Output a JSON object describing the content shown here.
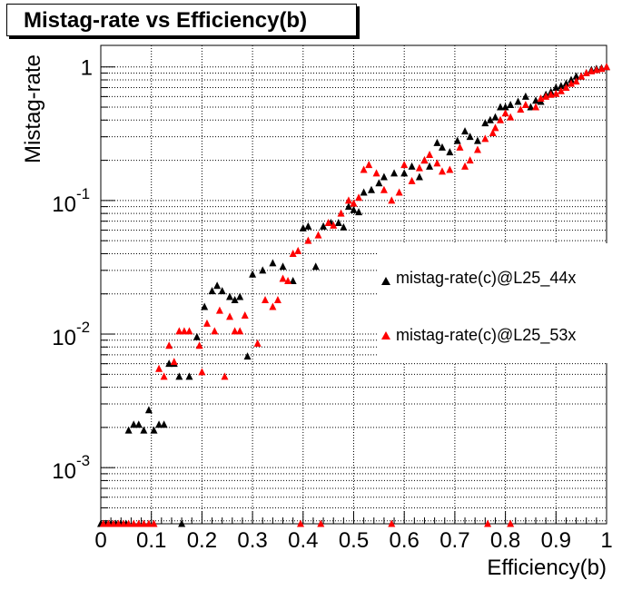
{
  "chart_data": {
    "type": "scatter",
    "title": "Mistag-rate vs Efficiency(b)",
    "xlabel": "Efficiency(b)",
    "ylabel": "Mistag-rate",
    "xlim": [
      0,
      1
    ],
    "ylim": [
      0.00038,
      1.45
    ],
    "yscale": "log",
    "grid": true,
    "legend_position": "right",
    "x_ticks": [
      "0",
      "0.1",
      "0.2",
      "0.3",
      "0.4",
      "0.5",
      "0.6",
      "0.7",
      "0.8",
      "0.9",
      "1"
    ],
    "y_ticks": [
      {
        "base": "10",
        "exp": "-3",
        "value": 0.001
      },
      {
        "base": "10",
        "exp": "-2",
        "value": 0.01
      },
      {
        "base": "10",
        "exp": "-1",
        "value": 0.1
      },
      {
        "base": "1",
        "exp": "",
        "value": 1
      }
    ],
    "series": [
      {
        "name": "mistag-rate(c)@L25_44x",
        "color": "#000000",
        "points": [
          [
            0.0,
            0.00038
          ],
          [
            0.01,
            0.00038
          ],
          [
            0.02,
            0.00038
          ],
          [
            0.03,
            0.00038
          ],
          [
            0.04,
            0.00038
          ],
          [
            0.05,
            0.00038
          ],
          [
            0.16,
            0.00038
          ],
          [
            0.055,
            0.0019
          ],
          [
            0.065,
            0.0021
          ],
          [
            0.075,
            0.0021
          ],
          [
            0.085,
            0.0019
          ],
          [
            0.095,
            0.0027
          ],
          [
            0.105,
            0.0019
          ],
          [
            0.115,
            0.0021
          ],
          [
            0.125,
            0.0021
          ],
          [
            0.135,
            0.006
          ],
          [
            0.145,
            0.006
          ],
          [
            0.155,
            0.0048
          ],
          [
            0.175,
            0.0048
          ],
          [
            0.19,
            0.0095
          ],
          [
            0.205,
            0.016
          ],
          [
            0.22,
            0.021
          ],
          [
            0.23,
            0.023
          ],
          [
            0.24,
            0.021
          ],
          [
            0.255,
            0.019
          ],
          [
            0.265,
            0.018
          ],
          [
            0.275,
            0.019
          ],
          [
            0.29,
            0.0068
          ],
          [
            0.3,
            0.028
          ],
          [
            0.32,
            0.03
          ],
          [
            0.34,
            0.034
          ],
          [
            0.36,
            0.032
          ],
          [
            0.38,
            0.025
          ],
          [
            0.4,
            0.062
          ],
          [
            0.41,
            0.064
          ],
          [
            0.425,
            0.032
          ],
          [
            0.44,
            0.064
          ],
          [
            0.455,
            0.068
          ],
          [
            0.47,
            0.068
          ],
          [
            0.48,
            0.063
          ],
          [
            0.49,
            0.09
          ],
          [
            0.5,
            0.085
          ],
          [
            0.51,
            0.082
          ],
          [
            0.52,
            0.115
          ],
          [
            0.535,
            0.12
          ],
          [
            0.55,
            0.135
          ],
          [
            0.56,
            0.15
          ],
          [
            0.58,
            0.16
          ],
          [
            0.6,
            0.16
          ],
          [
            0.615,
            0.18
          ],
          [
            0.63,
            0.15
          ],
          [
            0.64,
            0.2
          ],
          [
            0.65,
            0.18
          ],
          [
            0.665,
            0.27
          ],
          [
            0.675,
            0.25
          ],
          [
            0.69,
            0.23
          ],
          [
            0.705,
            0.28
          ],
          [
            0.72,
            0.33
          ],
          [
            0.73,
            0.3
          ],
          [
            0.745,
            0.28
          ],
          [
            0.76,
            0.38
          ],
          [
            0.77,
            0.4
          ],
          [
            0.78,
            0.42
          ],
          [
            0.79,
            0.5
          ],
          [
            0.8,
            0.5
          ],
          [
            0.81,
            0.52
          ],
          [
            0.825,
            0.55
          ],
          [
            0.84,
            0.6
          ],
          [
            0.85,
            0.5
          ],
          [
            0.86,
            0.56
          ],
          [
            0.87,
            0.55
          ],
          [
            0.88,
            0.62
          ],
          [
            0.89,
            0.65
          ],
          [
            0.9,
            0.7
          ],
          [
            0.91,
            0.72
          ],
          [
            0.92,
            0.75
          ],
          [
            0.93,
            0.8
          ],
          [
            0.94,
            0.85
          ],
          [
            0.95,
            0.85
          ],
          [
            0.96,
            0.9
          ],
          [
            0.97,
            0.95
          ],
          [
            0.98,
            0.97
          ],
          [
            0.99,
            0.98
          ],
          [
            1.0,
            1.0
          ]
        ]
      },
      {
        "name": "mistag-rate(c)@L25_53x",
        "color": "#ff0000",
        "points": [
          [
            0.005,
            0.00038
          ],
          [
            0.015,
            0.00038
          ],
          [
            0.025,
            0.00038
          ],
          [
            0.035,
            0.00038
          ],
          [
            0.045,
            0.00038
          ],
          [
            0.055,
            0.00038
          ],
          [
            0.065,
            0.00038
          ],
          [
            0.075,
            0.00038
          ],
          [
            0.085,
            0.00038
          ],
          [
            0.095,
            0.00038
          ],
          [
            0.105,
            0.00038
          ],
          [
            0.395,
            0.00038
          ],
          [
            0.435,
            0.00038
          ],
          [
            0.575,
            0.00038
          ],
          [
            0.765,
            0.00038
          ],
          [
            0.81,
            0.00038
          ],
          [
            0.115,
            0.0055
          ],
          [
            0.125,
            0.0048
          ],
          [
            0.135,
            0.0082
          ],
          [
            0.145,
            0.0062
          ],
          [
            0.155,
            0.0105
          ],
          [
            0.165,
            0.0105
          ],
          [
            0.175,
            0.0105
          ],
          [
            0.195,
            0.0082
          ],
          [
            0.2,
            0.0052
          ],
          [
            0.21,
            0.012
          ],
          [
            0.225,
            0.0105
          ],
          [
            0.235,
            0.015
          ],
          [
            0.245,
            0.0048
          ],
          [
            0.255,
            0.0135
          ],
          [
            0.265,
            0.0105
          ],
          [
            0.275,
            0.0105
          ],
          [
            0.285,
            0.0138
          ],
          [
            0.31,
            0.0085
          ],
          [
            0.325,
            0.018
          ],
          [
            0.34,
            0.016
          ],
          [
            0.35,
            0.018
          ],
          [
            0.36,
            0.026
          ],
          [
            0.37,
            0.025
          ],
          [
            0.38,
            0.04
          ],
          [
            0.39,
            0.042
          ],
          [
            0.41,
            0.05
          ],
          [
            0.43,
            0.055
          ],
          [
            0.45,
            0.068
          ],
          [
            0.46,
            0.065
          ],
          [
            0.475,
            0.08
          ],
          [
            0.49,
            0.1
          ],
          [
            0.5,
            0.095
          ],
          [
            0.51,
            0.105
          ],
          [
            0.52,
            0.17
          ],
          [
            0.53,
            0.185
          ],
          [
            0.545,
            0.16
          ],
          [
            0.56,
            0.12
          ],
          [
            0.575,
            0.1
          ],
          [
            0.59,
            0.115
          ],
          [
            0.6,
            0.185
          ],
          [
            0.615,
            0.14
          ],
          [
            0.63,
            0.175
          ],
          [
            0.64,
            0.2
          ],
          [
            0.65,
            0.22
          ],
          [
            0.665,
            0.19
          ],
          [
            0.675,
            0.165
          ],
          [
            0.69,
            0.17
          ],
          [
            0.71,
            0.25
          ],
          [
            0.72,
            0.18
          ],
          [
            0.73,
            0.2
          ],
          [
            0.745,
            0.24
          ],
          [
            0.76,
            0.29
          ],
          [
            0.775,
            0.32
          ],
          [
            0.78,
            0.35
          ],
          [
            0.79,
            0.4
          ],
          [
            0.8,
            0.45
          ],
          [
            0.81,
            0.42
          ],
          [
            0.83,
            0.48
          ],
          [
            0.84,
            0.52
          ],
          [
            0.86,
            0.5
          ],
          [
            0.87,
            0.58
          ],
          [
            0.88,
            0.6
          ],
          [
            0.89,
            0.62
          ],
          [
            0.9,
            0.63
          ],
          [
            0.91,
            0.66
          ],
          [
            0.92,
            0.7
          ],
          [
            0.93,
            0.75
          ],
          [
            0.94,
            0.78
          ],
          [
            0.95,
            0.85
          ],
          [
            0.96,
            0.9
          ],
          [
            0.97,
            0.93
          ],
          [
            0.98,
            0.95
          ],
          [
            0.99,
            0.97
          ],
          [
            1.0,
            1.0
          ]
        ]
      }
    ]
  }
}
